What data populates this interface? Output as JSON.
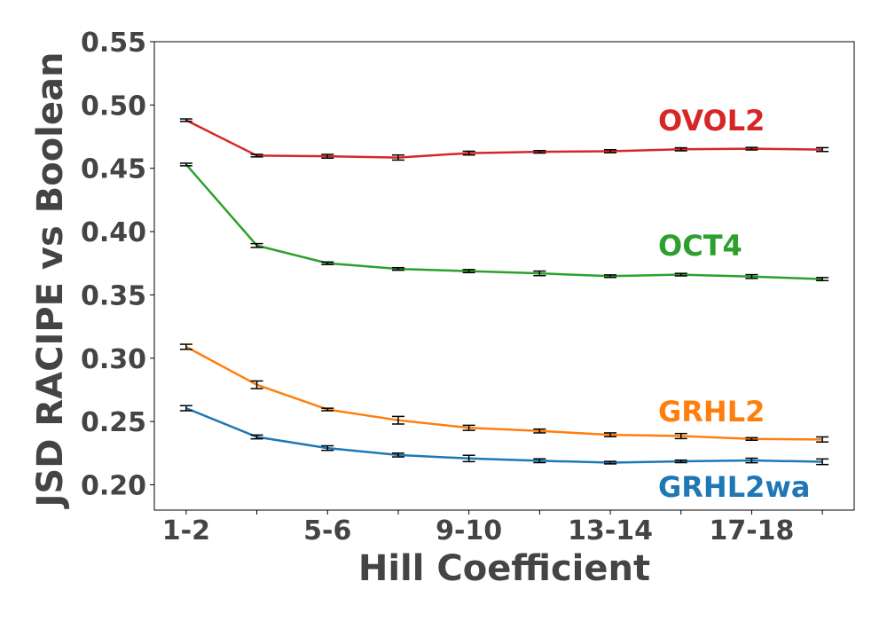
{
  "chart_data": {
    "type": "line",
    "title": "",
    "xlabel": "Hill Coefficient",
    "ylabel": "JSD RACIPE vs Boolean",
    "x_tick_labels": [
      "1-2",
      "5-6",
      "9-10",
      "13-14",
      "17-18"
    ],
    "x_tick_positions": [
      0,
      2,
      4,
      6,
      8
    ],
    "y_ticks": [
      "0.20",
      "0.25",
      "0.30",
      "0.35",
      "0.40",
      "0.45",
      "0.50",
      "0.55"
    ],
    "ylim": [
      0.18,
      0.55
    ],
    "grid": false,
    "series": [
      {
        "name": "OVOL2",
        "color": "#d62728",
        "values": [
          0.488,
          0.46,
          0.4595,
          0.4585,
          0.462,
          0.463,
          0.4635,
          0.465,
          0.4655,
          0.4648
        ],
        "errors": [
          0.001,
          0.001,
          0.0015,
          0.002,
          0.0015,
          0.001,
          0.0012,
          0.0012,
          0.001,
          0.0015
        ]
      },
      {
        "name": "OCT4",
        "color": "#2ca02c",
        "values": [
          0.453,
          0.389,
          0.375,
          0.3705,
          0.3688,
          0.367,
          0.3648,
          0.366,
          0.3645,
          0.3625
        ],
        "errors": [
          0.001,
          0.0015,
          0.001,
          0.001,
          0.0012,
          0.0018,
          0.001,
          0.001,
          0.0015,
          0.0012
        ]
      },
      {
        "name": "GRHL2",
        "color": "#ff7f0e",
        "values": [
          0.309,
          0.279,
          0.2595,
          0.251,
          0.245,
          0.2425,
          0.2395,
          0.2385,
          0.2362,
          0.2358
        ],
        "errors": [
          0.002,
          0.003,
          0.001,
          0.003,
          0.002,
          0.0015,
          0.0015,
          0.002,
          0.001,
          0.002
        ]
      },
      {
        "name": "GRHL2wa",
        "color": "#1f77b4",
        "values": [
          0.2605,
          0.2378,
          0.229,
          0.2235,
          0.2208,
          0.219,
          0.2175,
          0.2185,
          0.2192,
          0.2182
        ],
        "errors": [
          0.002,
          0.0015,
          0.0018,
          0.0015,
          0.0025,
          0.0015,
          0.001,
          0.001,
          0.0018,
          0.0022
        ]
      }
    ]
  }
}
